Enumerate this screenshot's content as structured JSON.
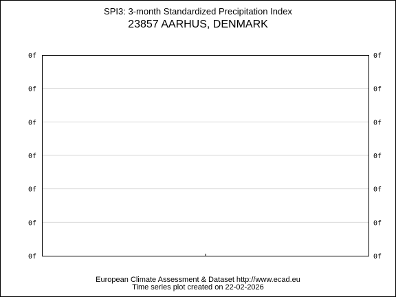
{
  "chart_data": {
    "type": "line",
    "title": "SPI3: 3-month Standardized Precipitation Index",
    "subtitle": "23857 AARHUS, DENMARK",
    "y_tick_labels": [
      "0f",
      "0f",
      "0f",
      "0f",
      "0f",
      "0f",
      "0f"
    ],
    "x_tick_labels": [],
    "series": [],
    "grid": true,
    "legend": "none"
  },
  "footer": {
    "line1": "European Climate Assessment & Dataset  http://www.ecad.eu",
    "line2": "Time series plot created on 22-02-2026"
  },
  "colors": {
    "frame": "#000000",
    "grid": "#d9d9d9",
    "background": "#ffffff"
  }
}
